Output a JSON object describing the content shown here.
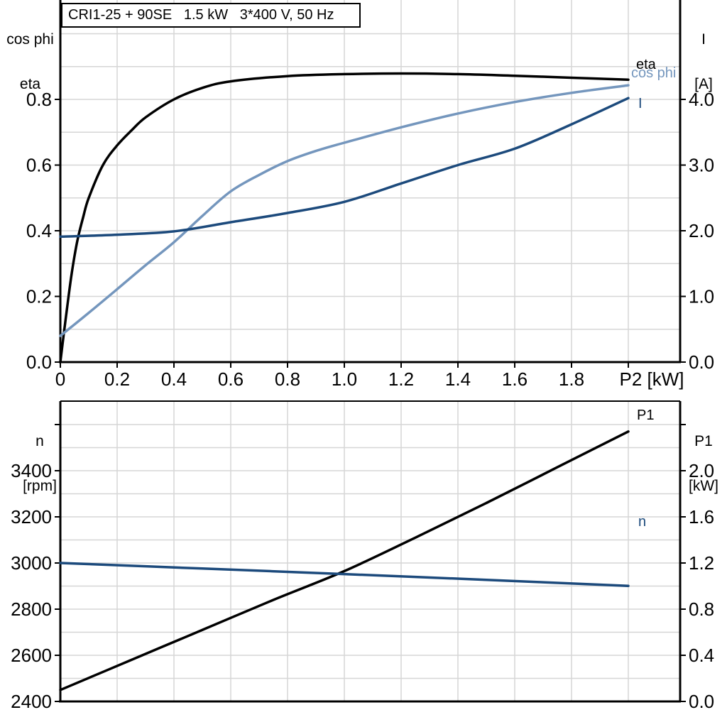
{
  "title_box": {
    "text": "CRI1-25 + 90SE   1.5 kW   3*400 V, 50 Hz"
  },
  "colors": {
    "black_curve": "#000000",
    "dark_blue": "#1c4a7c",
    "light_blue": "#7496bd",
    "gridline": "#d6d6d6",
    "axis": "#000000",
    "text": "#000000",
    "background": "#ffffff"
  },
  "chart_data": [
    {
      "id": "top",
      "type": "line",
      "title": "CRI1-25 + 90SE   1.5 kW   3*400 V, 50 Hz",
      "x_axis": {
        "label": "P2 [kW]",
        "range": [
          0,
          2.18
        ],
        "ticks": [
          0,
          0.2,
          0.4,
          0.6,
          0.8,
          1.0,
          1.2,
          1.4,
          1.6,
          1.8,
          2.0
        ],
        "tick_labels": [
          "0",
          "0.2",
          "0.4",
          "0.6",
          "0.8",
          "1.0",
          "1.2",
          "1.4",
          "1.6",
          "1.8",
          ""
        ],
        "grid": {
          "min": 0.2,
          "max": 2.0,
          "step": 0.2
        }
      },
      "y_left": {
        "title_lines": [
          "cos phi",
          "eta"
        ],
        "range": [
          0,
          1.1
        ],
        "ticks": [
          0,
          0.2,
          0.4,
          0.6,
          0.8
        ],
        "tick_labels": [
          "0.0",
          "0.2",
          "0.4",
          "0.6",
          "0.8"
        ],
        "grid": {
          "min": 0.1,
          "max": 1.0,
          "step": 0.1
        }
      },
      "y_right": {
        "title_lines": [
          "I",
          "[A]"
        ],
        "unit": "A",
        "range": [
          0,
          5.5
        ],
        "ticks": [
          0,
          1.0,
          2.0,
          3.0,
          4.0
        ],
        "tick_labels": [
          "0.0",
          "1.0",
          "2.0",
          "3.0",
          "4.0"
        ]
      },
      "series": [
        {
          "name": "eta",
          "axis": "left",
          "color": "#000000",
          "points": [
            [
              0,
              0
            ],
            [
              0.02,
              0.14
            ],
            [
              0.04,
              0.27
            ],
            [
              0.06,
              0.37
            ],
            [
              0.08,
              0.44
            ],
            [
              0.1,
              0.5
            ],
            [
              0.15,
              0.6
            ],
            [
              0.2,
              0.66
            ],
            [
              0.25,
              0.705
            ],
            [
              0.3,
              0.745
            ],
            [
              0.4,
              0.8
            ],
            [
              0.5,
              0.835
            ],
            [
              0.6,
              0.855
            ],
            [
              0.8,
              0.871
            ],
            [
              1.0,
              0.877
            ],
            [
              1.2,
              0.879
            ],
            [
              1.4,
              0.877
            ],
            [
              1.6,
              0.872
            ],
            [
              1.8,
              0.866
            ],
            [
              2.0,
              0.86
            ]
          ]
        },
        {
          "name": "cos phi",
          "axis": "left",
          "color": "#7496bd",
          "points": [
            [
              0,
              0.08
            ],
            [
              0.1,
              0.15
            ],
            [
              0.2,
              0.222
            ],
            [
              0.3,
              0.295
            ],
            [
              0.4,
              0.365
            ],
            [
              0.5,
              0.445
            ],
            [
              0.6,
              0.52
            ],
            [
              0.7,
              0.57
            ],
            [
              0.8,
              0.612
            ],
            [
              0.9,
              0.643
            ],
            [
              1.0,
              0.668
            ],
            [
              1.2,
              0.715
            ],
            [
              1.4,
              0.757
            ],
            [
              1.6,
              0.792
            ],
            [
              1.8,
              0.82
            ],
            [
              2.0,
              0.843
            ]
          ]
        },
        {
          "name": "I",
          "axis": "right",
          "color": "#1c4a7c",
          "points": [
            [
              0,
              1.91
            ],
            [
              0.2,
              1.94
            ],
            [
              0.4,
              1.99
            ],
            [
              0.6,
              2.13
            ],
            [
              0.8,
              2.27
            ],
            [
              1.0,
              2.44
            ],
            [
              1.2,
              2.72
            ],
            [
              1.4,
              3.0
            ],
            [
              1.6,
              3.25
            ],
            [
              1.8,
              3.62
            ],
            [
              2.0,
              4.02
            ]
          ]
        }
      ]
    },
    {
      "id": "bottom",
      "type": "line",
      "x_axis": {
        "label": "",
        "range": [
          0,
          2.18
        ],
        "ticks": [],
        "tick_labels": [],
        "grid": {
          "min": 0.2,
          "max": 2.0,
          "step": 0.2
        }
      },
      "y_left": {
        "title_lines": [
          "n",
          "[rpm]"
        ],
        "unit": "rpm",
        "range": [
          2400,
          3700
        ],
        "ticks": [
          2400,
          2600,
          2800,
          3000,
          3200,
          3400
        ],
        "tick_labels": [
          "2400",
          "2600",
          "2800",
          "3000",
          "3200",
          "3400"
        ],
        "extra_ticks": [
          3600
        ],
        "grid": {
          "min": 2500,
          "max": 3600,
          "step": 100
        }
      },
      "y_right": {
        "title_lines": [
          "P1",
          "[kW]"
        ],
        "unit": "kW",
        "range": [
          0,
          2.6
        ],
        "ticks": [
          0,
          0.4,
          0.8,
          1.2,
          1.6,
          2.0
        ],
        "tick_labels": [
          "0.0",
          "0.4",
          "0.8",
          "1.2",
          "1.6",
          "2.0"
        ],
        "extra_ticks": [
          2.4
        ]
      },
      "series": [
        {
          "name": "P1",
          "axis": "right",
          "color": "#000000",
          "points": [
            [
              0,
              0.1
            ],
            [
              0.25,
              0.36
            ],
            [
              0.5,
              0.62
            ],
            [
              0.75,
              0.88
            ],
            [
              1.0,
              1.13
            ],
            [
              1.25,
              1.42
            ],
            [
              1.5,
              1.72
            ],
            [
              1.75,
              2.03
            ],
            [
              2.0,
              2.34
            ]
          ]
        },
        {
          "name": "n",
          "axis": "left",
          "color": "#1c4a7c",
          "points": [
            [
              0,
              3000
            ],
            [
              0.5,
              2976
            ],
            [
              1.0,
              2952
            ],
            [
              1.5,
              2927
            ],
            [
              2.0,
              2901
            ]
          ]
        }
      ]
    }
  ]
}
